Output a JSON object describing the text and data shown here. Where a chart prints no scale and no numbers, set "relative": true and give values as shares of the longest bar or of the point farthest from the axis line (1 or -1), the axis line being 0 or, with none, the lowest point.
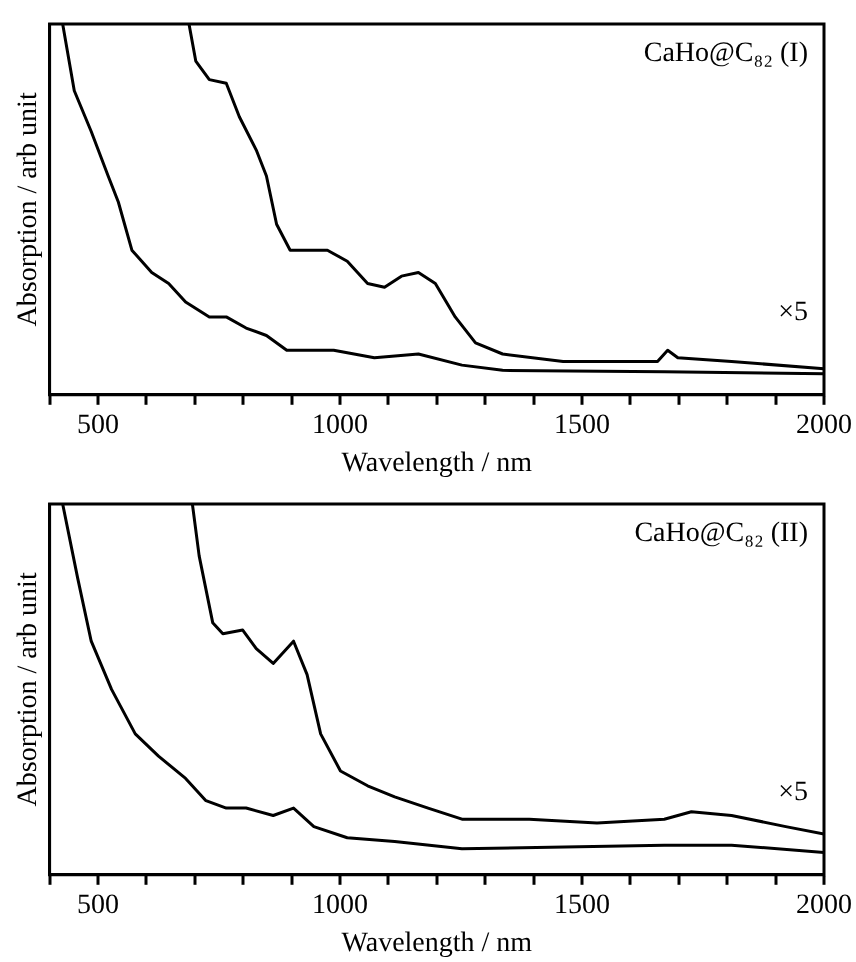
{
  "chart_data": [
    {
      "type": "line",
      "relative": true,
      "xlabel": "Wavelength / nm",
      "ylabel": "Absorption / arb unit",
      "xlim": [
        400,
        2000
      ],
      "xticks": [
        {
          "value": 400,
          "label": null
        },
        500,
        {
          "value": 600,
          "label": null
        },
        {
          "value": 700,
          "label": null
        },
        {
          "value": 800,
          "label": null
        },
        {
          "value": 900,
          "label": null
        },
        1000,
        {
          "value": 1100,
          "label": null
        },
        {
          "value": 1200,
          "label": null
        },
        {
          "value": 1300,
          "label": null
        },
        {
          "value": 1400,
          "label": null
        },
        1500,
        {
          "value": 1600,
          "label": null
        },
        {
          "value": 1700,
          "label": null
        },
        {
          "value": 1800,
          "label": null
        },
        {
          "value": 1900,
          "label": null
        },
        2000
      ],
      "tick_labels": "x",
      "grid": false,
      "legend": false,
      "marker": "none",
      "line_style": "solid",
      "annotations": [
        "CaHo@C₈₂ (I)",
        "×5"
      ],
      "series": [
        {
          "color": "#000000",
          "x": [
            427,
            451,
            486,
            521,
            542,
            570,
            611,
            646,
            681,
            730,
            765,
            806,
            848,
            890,
            987,
            1071,
            1162,
            1252,
            1336,
            1670,
            2000
          ],
          "values": [
            1.0,
            0.82,
            0.71,
            0.59,
            0.52,
            0.39,
            0.33,
            0.3,
            0.25,
            0.21,
            0.21,
            0.18,
            0.16,
            0.12,
            0.12,
            0.1,
            0.11,
            0.08,
            0.066,
            0.062,
            0.057
          ]
        },
        {
          "color": "#000000",
          "x": [
            688,
            702,
            730,
            765,
            792,
            827,
            848,
            869,
            897,
            932,
            974,
            1015,
            1057,
            1092,
            1127,
            1162,
            1197,
            1238,
            1280,
            1336,
            1461,
            1656,
            1677,
            1698,
            1809,
            2000
          ],
          "values": [
            1.0,
            0.9,
            0.85,
            0.84,
            0.75,
            0.66,
            0.59,
            0.46,
            0.39,
            0.39,
            0.39,
            0.36,
            0.3,
            0.29,
            0.32,
            0.33,
            0.3,
            0.21,
            0.14,
            0.11,
            0.09,
            0.09,
            0.12,
            0.1,
            0.09,
            0.07
          ]
        }
      ]
    },
    {
      "type": "line",
      "relative": true,
      "xlabel": "Wavelength / nm",
      "ylabel": "Absorption / arb unit",
      "xlim": [
        400,
        2000
      ],
      "xticks": [
        {
          "value": 400,
          "label": null
        },
        500,
        {
          "value": 600,
          "label": null
        },
        {
          "value": 700,
          "label": null
        },
        {
          "value": 800,
          "label": null
        },
        {
          "value": 900,
          "label": null
        },
        1000,
        {
          "value": 1100,
          "label": null
        },
        {
          "value": 1200,
          "label": null
        },
        {
          "value": 1300,
          "label": null
        },
        {
          "value": 1400,
          "label": null
        },
        1500,
        {
          "value": 1600,
          "label": null
        },
        {
          "value": 1700,
          "label": null
        },
        {
          "value": 1800,
          "label": null
        },
        {
          "value": 1900,
          "label": null
        },
        2000
      ],
      "tick_labels": "x",
      "grid": false,
      "legend": false,
      "marker": "none",
      "line_style": "solid",
      "annotations": [
        "CaHo@C₈₂ (II)",
        "×5"
      ],
      "series": [
        {
          "color": "#000000",
          "x": [
            427,
            458,
            486,
            528,
            577,
            625,
            681,
            723,
            765,
            806,
            862,
            904,
            946,
            1015,
            1113,
            1252,
            1670,
            1809,
            2000
          ],
          "values": [
            1.0,
            0.8,
            0.63,
            0.5,
            0.38,
            0.32,
            0.26,
            0.2,
            0.18,
            0.18,
            0.16,
            0.18,
            0.13,
            0.1,
            0.09,
            0.07,
            0.08,
            0.08,
            0.06
          ]
        },
        {
          "color": "#000000",
          "x": [
            695,
            709,
            737,
            758,
            799,
            827,
            862,
            904,
            932,
            960,
            1001,
            1057,
            1113,
            1182,
            1252,
            1391,
            1531,
            1670,
            1726,
            1809,
            1921,
            2000
          ],
          "values": [
            1.0,
            0.86,
            0.68,
            0.65,
            0.66,
            0.61,
            0.57,
            0.63,
            0.54,
            0.38,
            0.28,
            0.24,
            0.21,
            0.18,
            0.15,
            0.15,
            0.14,
            0.15,
            0.17,
            0.16,
            0.13,
            0.11
          ]
        }
      ]
    }
  ]
}
